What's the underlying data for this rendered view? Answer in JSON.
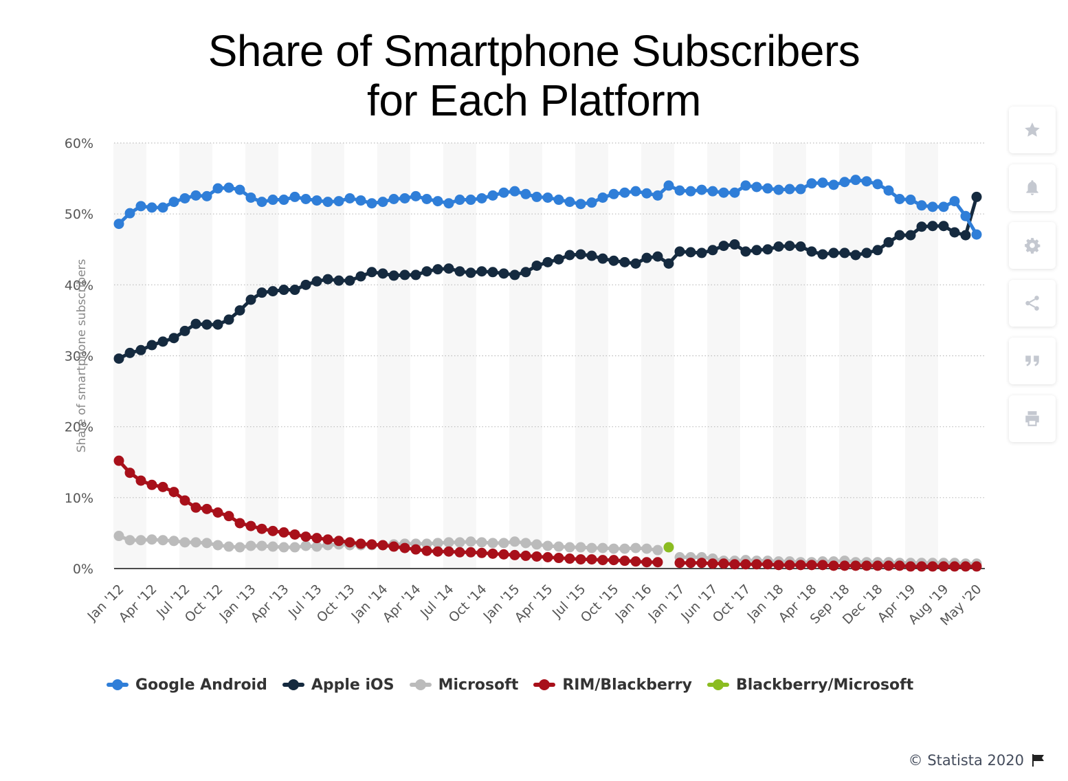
{
  "chart_data": {
    "type": "line",
    "title_lines": [
      "Share of Smartphone Subscribers",
      "for Each Platform"
    ],
    "ylabel": "Share of smartphone subscribers",
    "ylim": [
      0,
      60
    ],
    "yticks": [
      0,
      10,
      20,
      30,
      40,
      50,
      60
    ],
    "ytick_labels": [
      "0%",
      "10%",
      "20%",
      "30%",
      "40%",
      "50%",
      "60%"
    ],
    "grid": true,
    "legend_position": "bottom",
    "n_points": 79,
    "xtick_labels": [
      {
        "i": 0,
        "label": "Jan '12"
      },
      {
        "i": 3,
        "label": "Apr '12"
      },
      {
        "i": 6,
        "label": "Jul '12"
      },
      {
        "i": 9,
        "label": "Oct '12"
      },
      {
        "i": 12,
        "label": "Jan '13"
      },
      {
        "i": 15,
        "label": "Apr '13"
      },
      {
        "i": 18,
        "label": "Jul '13"
      },
      {
        "i": 21,
        "label": "Oct '13"
      },
      {
        "i": 24,
        "label": "Jan '14"
      },
      {
        "i": 27,
        "label": "Apr '14"
      },
      {
        "i": 30,
        "label": "Jul '14"
      },
      {
        "i": 33,
        "label": "Oct '14"
      },
      {
        "i": 36,
        "label": "Jan '15"
      },
      {
        "i": 39,
        "label": "Apr '15"
      },
      {
        "i": 42,
        "label": "Jul '15"
      },
      {
        "i": 45,
        "label": "Oct '15"
      },
      {
        "i": 48,
        "label": "Jan '16"
      },
      {
        "i": 51,
        "label": "Jan '17"
      },
      {
        "i": 54,
        "label": "Jun '17"
      },
      {
        "i": 57,
        "label": "Oct '17"
      },
      {
        "i": 60,
        "label": "Jan '18"
      },
      {
        "i": 63,
        "label": "Apr '18"
      },
      {
        "i": 66,
        "label": "Sep '18"
      },
      {
        "i": 69,
        "label": "Dec '18"
      },
      {
        "i": 72,
        "label": "Apr '19"
      },
      {
        "i": 75,
        "label": "Aug '19"
      },
      {
        "i": 78,
        "label": "May '20"
      }
    ],
    "series": [
      {
        "name": "Google Android",
        "color": "#2f7ed8",
        "start": 0,
        "values": [
          48.6,
          50.1,
          51.1,
          50.9,
          50.9,
          51.7,
          52.2,
          52.6,
          52.5,
          53.6,
          53.7,
          53.4,
          52.3,
          51.7,
          52.0,
          52.0,
          52.4,
          52.1,
          51.9,
          51.7,
          51.8,
          52.2,
          51.9,
          51.5,
          51.7,
          52.1,
          52.2,
          52.5,
          52.1,
          51.8,
          51.5,
          52.0,
          52.0,
          52.2,
          52.6,
          53.0,
          53.2,
          52.8,
          52.4,
          52.3,
          52.0,
          51.7,
          51.4,
          51.6,
          52.3,
          52.8,
          53.0,
          53.2,
          52.9,
          52.6,
          54.0,
          53.3,
          53.2,
          53.4,
          53.2,
          53.0,
          53.0,
          54.0,
          53.8,
          53.6,
          53.4,
          53.5,
          53.5,
          54.3,
          54.4,
          54.1,
          54.5,
          54.8,
          54.6,
          54.2,
          53.3,
          52.1,
          52.0,
          51.2,
          51.0,
          51.0,
          51.8,
          49.7,
          47.1
        ]
      },
      {
        "name": "Apple iOS",
        "color": "#152a3f",
        "start": 0,
        "values": [
          29.6,
          30.4,
          30.8,
          31.5,
          32.0,
          32.5,
          33.5,
          34.5,
          34.4,
          34.4,
          35.1,
          36.4,
          37.9,
          38.9,
          39.1,
          39.3,
          39.3,
          40.0,
          40.5,
          40.8,
          40.6,
          40.6,
          41.2,
          41.8,
          41.6,
          41.3,
          41.4,
          41.4,
          41.9,
          42.2,
          42.3,
          41.9,
          41.7,
          41.9,
          41.8,
          41.6,
          41.4,
          41.8,
          42.7,
          43.2,
          43.6,
          44.2,
          44.3,
          44.1,
          43.7,
          43.4,
          43.2,
          43.0,
          43.8,
          44.0,
          43.0,
          44.7,
          44.6,
          44.5,
          44.9,
          45.5,
          45.7,
          44.7,
          44.9,
          45.0,
          45.4,
          45.5,
          45.4,
          44.7,
          44.3,
          44.5,
          44.5,
          44.2,
          44.5,
          44.9,
          46.0,
          47.0,
          47.0,
          48.2,
          48.3,
          48.3,
          47.4,
          47.0,
          52.4
        ]
      },
      {
        "name": "Microsoft",
        "color": "#bbbbbb",
        "start": 0,
        "values": [
          4.6,
          4.0,
          4.0,
          4.1,
          4.0,
          3.9,
          3.7,
          3.7,
          3.6,
          3.3,
          3.1,
          3.0,
          3.2,
          3.2,
          3.1,
          3.0,
          3.0,
          3.2,
          3.1,
          3.3,
          3.4,
          3.3,
          3.3,
          3.3,
          3.3,
          3.4,
          3.5,
          3.5,
          3.5,
          3.6,
          3.7,
          3.7,
          3.8,
          3.7,
          3.6,
          3.6,
          3.8,
          3.6,
          3.4,
          3.2,
          3.1,
          3.0,
          3.0,
          2.9,
          2.9,
          2.8,
          2.8,
          2.9,
          2.8,
          2.6,
          null,
          1.6,
          1.6,
          1.6,
          1.4,
          1.1,
          1.1,
          1.2,
          1.1,
          1.1,
          1.0,
          1.0,
          0.9,
          0.9,
          1.0,
          1.0,
          1.1,
          0.9,
          0.9,
          0.9,
          0.9,
          0.8,
          0.8,
          0.8,
          0.8,
          0.8,
          0.8,
          0.7,
          0.7
        ]
      },
      {
        "name": "RIM/Blackberry",
        "color": "#a8101a",
        "start": 0,
        "values": [
          15.2,
          13.5,
          12.4,
          11.8,
          11.5,
          10.8,
          9.6,
          8.6,
          8.4,
          7.9,
          7.4,
          6.4,
          6.0,
          5.6,
          5.3,
          5.1,
          4.8,
          4.5,
          4.3,
          4.1,
          3.9,
          3.7,
          3.5,
          3.4,
          3.3,
          3.1,
          2.9,
          2.7,
          2.5,
          2.4,
          2.4,
          2.3,
          2.3,
          2.2,
          2.1,
          2.0,
          1.9,
          1.8,
          1.7,
          1.6,
          1.5,
          1.4,
          1.3,
          1.3,
          1.2,
          1.2,
          1.1,
          1.0,
          0.9,
          0.9,
          null,
          0.8,
          0.8,
          0.8,
          0.7,
          0.7,
          0.6,
          0.6,
          0.6,
          0.6,
          0.5,
          0.5,
          0.5,
          0.5,
          0.5,
          0.4,
          0.4,
          0.4,
          0.4,
          0.4,
          0.4,
          0.4,
          0.3,
          0.3,
          0.3,
          0.3,
          0.3,
          0.3,
          0.3
        ]
      },
      {
        "name": "Blackberry/Microsoft",
        "color": "#8bbc21",
        "start": 0,
        "values": [
          null,
          null,
          null,
          null,
          null,
          null,
          null,
          null,
          null,
          null,
          null,
          null,
          null,
          null,
          null,
          null,
          null,
          null,
          null,
          null,
          null,
          null,
          null,
          null,
          null,
          null,
          null,
          null,
          null,
          null,
          null,
          null,
          null,
          null,
          null,
          null,
          null,
          null,
          null,
          null,
          null,
          null,
          null,
          null,
          null,
          null,
          null,
          null,
          null,
          null,
          3.0,
          null,
          null,
          null,
          null,
          null,
          null,
          null,
          null,
          null,
          null,
          null,
          null,
          null,
          null,
          null,
          null,
          null,
          null,
          null,
          null,
          null,
          null,
          null,
          null,
          null,
          null,
          null,
          null
        ]
      }
    ]
  },
  "footer": {
    "credit": "© Statista 2020"
  },
  "toolbar": {
    "icons": [
      "star-icon",
      "bell-icon",
      "gear-icon",
      "share-icon",
      "quote-icon",
      "print-icon"
    ]
  }
}
